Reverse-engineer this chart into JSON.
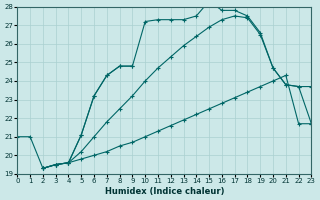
{
  "xlabel": "Humidex (Indice chaleur)",
  "bg_color": "#cce8e8",
  "line_color": "#006666",
  "grid_color": "#aad0d0",
  "xlim": [
    0,
    23
  ],
  "ylim": [
    19,
    28
  ],
  "xticks": [
    0,
    1,
    2,
    3,
    4,
    5,
    6,
    7,
    8,
    9,
    10,
    11,
    12,
    13,
    14,
    15,
    16,
    17,
    18,
    19,
    20,
    21,
    22,
    23
  ],
  "yticks": [
    19,
    20,
    21,
    22,
    23,
    24,
    25,
    26,
    27,
    28
  ],
  "lines": [
    {
      "x": [
        0,
        1,
        2,
        3,
        4,
        5,
        6,
        7,
        8,
        9,
        10,
        11,
        12,
        13,
        14,
        15,
        16,
        17,
        18,
        19,
        20,
        21,
        22,
        23
      ],
      "y": [
        21,
        21,
        19.3,
        19.5,
        19.6,
        19.8,
        20.0,
        20.2,
        20.5,
        20.7,
        21.0,
        21.3,
        21.6,
        21.9,
        22.2,
        22.5,
        22.8,
        23.1,
        23.4,
        23.7,
        24.0,
        24.3,
        21.7,
        21.7
      ]
    },
    {
      "x": [
        2,
        3,
        4,
        5,
        6,
        7,
        8,
        9,
        10,
        11,
        12,
        13,
        14,
        15,
        16,
        17,
        18,
        19,
        20,
        21,
        22,
        23
      ],
      "y": [
        19.3,
        19.5,
        19.6,
        20.2,
        21.0,
        21.8,
        22.5,
        23.2,
        24.0,
        24.7,
        25.3,
        25.9,
        26.4,
        26.9,
        27.3,
        27.5,
        27.4,
        26.5,
        24.7,
        23.8,
        23.7,
        23.7
      ]
    },
    {
      "x": [
        2,
        3,
        4,
        5,
        6,
        7,
        8,
        9
      ],
      "y": [
        19.3,
        19.5,
        19.6,
        21.1,
        23.2,
        24.3,
        24.8,
        24.8
      ]
    },
    {
      "x": [
        2,
        3,
        4,
        5,
        6,
        7,
        8,
        9,
        10,
        11,
        12,
        13,
        14,
        15,
        16,
        17,
        18,
        19,
        20,
        21,
        22,
        23
      ],
      "y": [
        19.3,
        19.5,
        19.6,
        21.1,
        23.2,
        24.3,
        24.8,
        24.8,
        27.2,
        27.3,
        27.3,
        27.3,
        27.5,
        28.3,
        27.8,
        27.8,
        27.5,
        26.6,
        24.7,
        23.8,
        23.7,
        21.7
      ]
    }
  ]
}
